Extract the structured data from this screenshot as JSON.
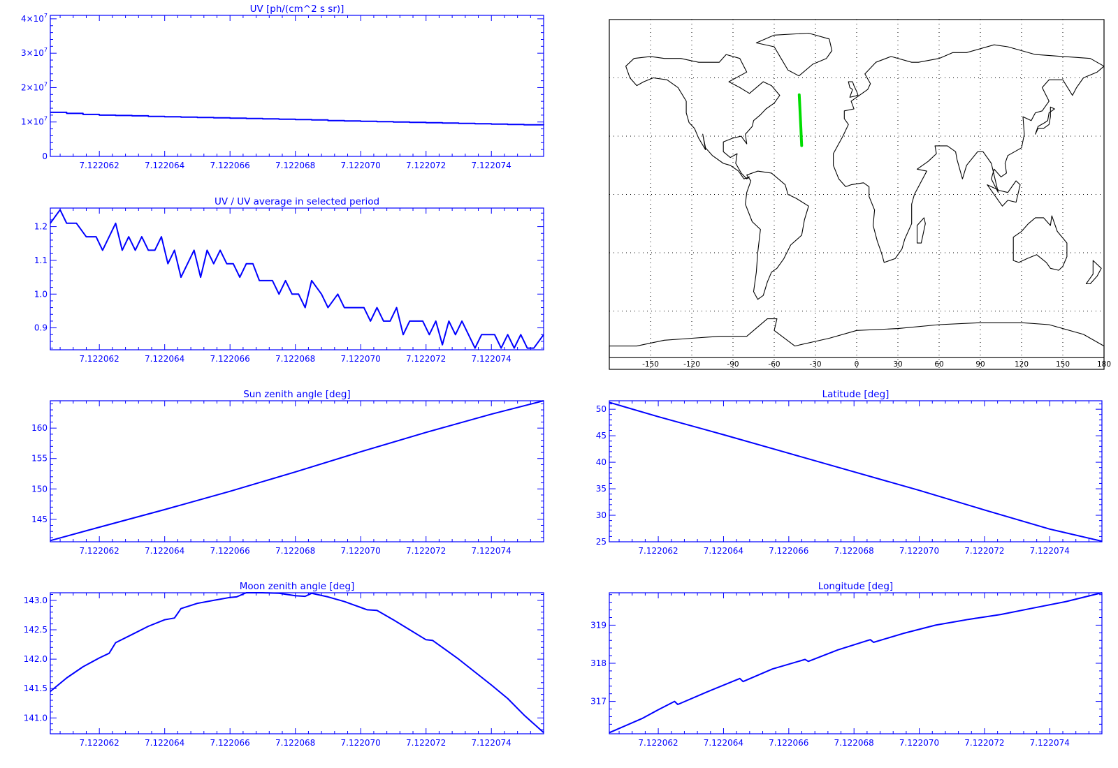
{
  "colors": {
    "axis": "#0000ff",
    "line": "#0000ff",
    "track": "#00dd00",
    "map_frame": "#000000",
    "coast": "#000000",
    "background": "#ffffff"
  },
  "chart_data": [
    {
      "id": "uv",
      "type": "line",
      "title": "UV [ph/(cm^2 s sr)]",
      "xlabel": "",
      "ylabel": "",
      "xlim": [
        7.1220605,
        7.1220756
      ],
      "ylim": [
        0,
        41000000
      ],
      "xticks": [
        7.122062,
        7.122064,
        7.122066,
        7.122068,
        7.12207,
        7.122072,
        7.122074
      ],
      "xtick_labels": [
        "7.122062",
        "7.122064",
        "7.122066",
        "7.122068",
        "7.122070",
        "7.122072",
        "7.122074"
      ],
      "yticks": [
        0,
        10000000,
        20000000,
        30000000,
        40000000
      ],
      "ytick_labels": [
        "0",
        "1×10",
        "2×10",
        "3×10",
        "4×10"
      ],
      "ytick_exponents": [
        "",
        "7",
        "7",
        "7",
        "7"
      ],
      "grid": false,
      "step": true,
      "x": [
        7.1220605,
        7.122061,
        7.1220615,
        7.122062,
        7.1220625,
        7.122063,
        7.1220635,
        7.122064,
        7.1220645,
        7.122065,
        7.1220655,
        7.122066,
        7.1220665,
        7.122067,
        7.1220675,
        7.122068,
        7.1220685,
        7.122069,
        7.1220695,
        7.12207,
        7.1220705,
        7.122071,
        7.1220715,
        7.122072,
        7.1220725,
        7.122073,
        7.1220735,
        7.122074,
        7.1220745,
        7.122075,
        7.1220756
      ],
      "y": [
        12800000,
        12500000,
        12200000,
        12000000,
        11900000,
        11800000,
        11600000,
        11500000,
        11400000,
        11300000,
        11200000,
        11100000,
        11000000,
        10900000,
        10800000,
        10700000,
        10600000,
        10400000,
        10300000,
        10200000,
        10100000,
        10000000,
        9900000,
        9800000,
        9700000,
        9600000,
        9500000,
        9400000,
        9300000,
        9200000,
        9100000
      ]
    },
    {
      "id": "uvratio",
      "type": "line",
      "title": "UV / UV average in selected period",
      "xlabel": "",
      "ylabel": "",
      "xlim": [
        7.1220605,
        7.1220756
      ],
      "ylim": [
        0.835,
        1.255
      ],
      "xticks": [
        7.122062,
        7.122064,
        7.122066,
        7.122068,
        7.12207,
        7.122072,
        7.122074
      ],
      "xtick_labels": [
        "7.122062",
        "7.122064",
        "7.122066",
        "7.122068",
        "7.122070",
        "7.122072",
        "7.122074"
      ],
      "yticks": [
        0.9,
        1.0,
        1.1,
        1.2
      ],
      "ytick_labels": [
        "0.9",
        "1.0",
        "1.1",
        "1.2"
      ],
      "grid": false,
      "x": [
        7.1220605,
        7.1220608,
        7.122061,
        7.1220613,
        7.1220616,
        7.1220619,
        7.1220621,
        7.1220623,
        7.1220625,
        7.1220627,
        7.1220629,
        7.1220631,
        7.1220633,
        7.1220635,
        7.1220637,
        7.1220639,
        7.1220641,
        7.1220643,
        7.1220645,
        7.1220647,
        7.1220649,
        7.1220651,
        7.1220653,
        7.1220655,
        7.1220657,
        7.1220659,
        7.1220661,
        7.1220663,
        7.1220665,
        7.1220667,
        7.1220669,
        7.1220671,
        7.1220673,
        7.1220675,
        7.1220677,
        7.1220679,
        7.1220681,
        7.1220683,
        7.1220685,
        7.1220688,
        7.122069,
        7.1220693,
        7.1220695,
        7.1220697,
        7.1220699,
        7.1220701,
        7.1220703,
        7.1220705,
        7.1220707,
        7.1220709,
        7.1220711,
        7.1220713,
        7.1220715,
        7.1220717,
        7.1220719,
        7.1220721,
        7.1220723,
        7.1220725,
        7.1220727,
        7.1220729,
        7.1220731,
        7.1220733,
        7.1220735,
        7.1220737,
        7.1220739,
        7.1220741,
        7.1220743,
        7.1220745,
        7.1220747,
        7.1220749,
        7.1220751,
        7.1220753,
        7.1220756
      ],
      "y": [
        1.21,
        1.25,
        1.21,
        1.21,
        1.17,
        1.17,
        1.13,
        1.17,
        1.21,
        1.13,
        1.17,
        1.13,
        1.17,
        1.13,
        1.13,
        1.17,
        1.09,
        1.13,
        1.05,
        1.09,
        1.13,
        1.05,
        1.13,
        1.09,
        1.13,
        1.09,
        1.09,
        1.05,
        1.09,
        1.09,
        1.04,
        1.04,
        1.04,
        1.0,
        1.04,
        1.0,
        1.0,
        0.96,
        1.04,
        1.0,
        0.96,
        1.0,
        0.96,
        0.96,
        0.96,
        0.96,
        0.92,
        0.96,
        0.92,
        0.92,
        0.96,
        0.88,
        0.92,
        0.92,
        0.92,
        0.88,
        0.92,
        0.85,
        0.92,
        0.88,
        0.92,
        0.88,
        0.84,
        0.88,
        0.88,
        0.88,
        0.84,
        0.88,
        0.84,
        0.88,
        0.84,
        0.84,
        0.88
      ]
    },
    {
      "id": "sun",
      "type": "line",
      "title": "Sun zenith angle [deg]",
      "xlabel": "",
      "ylabel": "",
      "xlim": [
        7.1220605,
        7.1220756
      ],
      "ylim": [
        141.3,
        164.5
      ],
      "xticks": [
        7.122062,
        7.122064,
        7.122066,
        7.122068,
        7.12207,
        7.122072,
        7.122074
      ],
      "xtick_labels": [
        "7.122062",
        "7.122064",
        "7.122066",
        "7.122068",
        "7.122070",
        "7.122072",
        "7.122074"
      ],
      "yticks": [
        145,
        150,
        155,
        160
      ],
      "ytick_labels": [
        "145",
        "150",
        "155",
        "160"
      ],
      "grid": false,
      "x": [
        7.1220605,
        7.122062,
        7.122064,
        7.122066,
        7.122068,
        7.12207,
        7.122072,
        7.122074,
        7.1220756
      ],
      "y": [
        141.5,
        143.7,
        146.6,
        149.6,
        152.8,
        156.1,
        159.3,
        162.3,
        164.5
      ]
    },
    {
      "id": "lat",
      "type": "line",
      "title": "Latitude [deg]",
      "xlabel": "",
      "ylabel": "",
      "xlim": [
        7.1220605,
        7.1220756
      ],
      "ylim": [
        25.0,
        51.6
      ],
      "xticks": [
        7.122062,
        7.122064,
        7.122066,
        7.122068,
        7.12207,
        7.122072,
        7.122074
      ],
      "xtick_labels": [
        "7.122062",
        "7.122064",
        "7.122066",
        "7.122068",
        "7.122070",
        "7.122072",
        "7.122074"
      ],
      "yticks": [
        25,
        30,
        35,
        40,
        45,
        50
      ],
      "ytick_labels": [
        "25",
        "30",
        "35",
        "40",
        "45",
        "50"
      ],
      "grid": false,
      "x": [
        7.1220605,
        7.122062,
        7.122064,
        7.122066,
        7.122068,
        7.12207,
        7.122072,
        7.122074,
        7.1220756
      ],
      "y": [
        51.3,
        48.6,
        45.2,
        41.7,
        38.2,
        34.7,
        31.0,
        27.4,
        25.1
      ]
    },
    {
      "id": "moon",
      "type": "line",
      "title": "Moon zenith angle [deg]",
      "xlabel": "",
      "ylabel": "",
      "xlim": [
        7.1220605,
        7.1220756
      ],
      "ylim": [
        140.73,
        143.13
      ],
      "xticks": [
        7.122062,
        7.122064,
        7.122066,
        7.122068,
        7.12207,
        7.122072,
        7.122074
      ],
      "xtick_labels": [
        "7.122062",
        "7.122064",
        "7.122066",
        "7.122068",
        "7.122070",
        "7.122072",
        "7.122074"
      ],
      "yticks": [
        141.0,
        141.5,
        142.0,
        142.5,
        143.0
      ],
      "ytick_labels": [
        "141.0",
        "141.5",
        "142.0",
        "142.5",
        "143.0"
      ],
      "grid": false,
      "x": [
        7.1220605,
        7.122061,
        7.1220615,
        7.122062,
        7.1220623,
        7.1220625,
        7.122063,
        7.1220635,
        7.122064,
        7.1220643,
        7.1220645,
        7.122065,
        7.1220655,
        7.122066,
        7.1220662,
        7.1220665,
        7.122067,
        7.1220675,
        7.122068,
        7.1220683,
        7.1220685,
        7.122069,
        7.1220695,
        7.12207,
        7.1220702,
        7.1220705,
        7.122071,
        7.1220715,
        7.122072,
        7.1220722,
        7.1220725,
        7.122073,
        7.1220735,
        7.122074,
        7.1220745,
        7.122075,
        7.1220756
      ],
      "y": [
        141.45,
        141.68,
        141.87,
        142.02,
        142.1,
        142.28,
        142.42,
        142.56,
        142.67,
        142.7,
        142.86,
        142.95,
        143.0,
        143.05,
        143.06,
        143.13,
        143.13,
        143.12,
        143.08,
        143.07,
        143.12,
        143.06,
        142.98,
        142.88,
        142.84,
        142.83,
        142.67,
        142.5,
        142.33,
        142.32,
        142.2,
        142.0,
        141.78,
        141.56,
        141.33,
        141.05,
        140.75
      ]
    },
    {
      "id": "lon",
      "type": "line",
      "title": "Longitude [deg]",
      "xlabel": "",
      "ylabel": "",
      "xlim": [
        7.1220605,
        7.1220756
      ],
      "ylim": [
        316.15,
        319.85
      ],
      "xticks": [
        7.122062,
        7.122064,
        7.122066,
        7.122068,
        7.12207,
        7.122072,
        7.122074
      ],
      "xtick_labels": [
        "7.122062",
        "7.122064",
        "7.122066",
        "7.122068",
        "7.122070",
        "7.122072",
        "7.122074"
      ],
      "yticks": [
        317,
        318,
        319
      ],
      "ytick_labels": [
        "317",
        "318",
        "319"
      ],
      "grid": false,
      "x": [
        7.1220605,
        7.1220615,
        7.122062,
        7.1220625,
        7.1220626,
        7.1220635,
        7.1220645,
        7.1220646,
        7.1220655,
        7.1220665,
        7.1220666,
        7.1220675,
        7.1220685,
        7.1220686,
        7.1220695,
        7.1220705,
        7.1220715,
        7.1220725,
        7.1220735,
        7.1220745,
        7.1220756
      ],
      "y": [
        316.18,
        316.55,
        316.78,
        317.0,
        316.92,
        317.25,
        317.6,
        317.52,
        317.85,
        318.1,
        318.05,
        318.35,
        318.62,
        318.55,
        318.78,
        319.0,
        319.15,
        319.28,
        319.45,
        319.62,
        319.85
      ]
    }
  ],
  "map": {
    "type": "map",
    "xlim": [
      -180,
      180
    ],
    "ylim": [
      -90,
      90
    ],
    "xticks": [
      -150,
      -120,
      -90,
      -60,
      -30,
      0,
      30,
      60,
      90,
      120,
      150,
      180
    ],
    "xtick_labels": [
      "-150",
      "-120",
      "-90",
      "-60",
      "-30",
      "0",
      "30",
      "60",
      "90",
      "120",
      "150",
      "180"
    ],
    "gridlines_lon": [
      -150,
      -120,
      -90,
      -60,
      -30,
      0,
      30,
      60,
      90,
      120,
      150
    ],
    "gridlines_lat": [
      -60,
      -30,
      0,
      30,
      60
    ],
    "track": {
      "lon": [
        -41.8,
        -41.5,
        -41.2,
        -40.9,
        -40.6,
        -40.3,
        -40.0
      ],
      "lat": [
        51.3,
        47.0,
        42.6,
        38.2,
        33.8,
        29.4,
        25.1
      ]
    }
  }
}
